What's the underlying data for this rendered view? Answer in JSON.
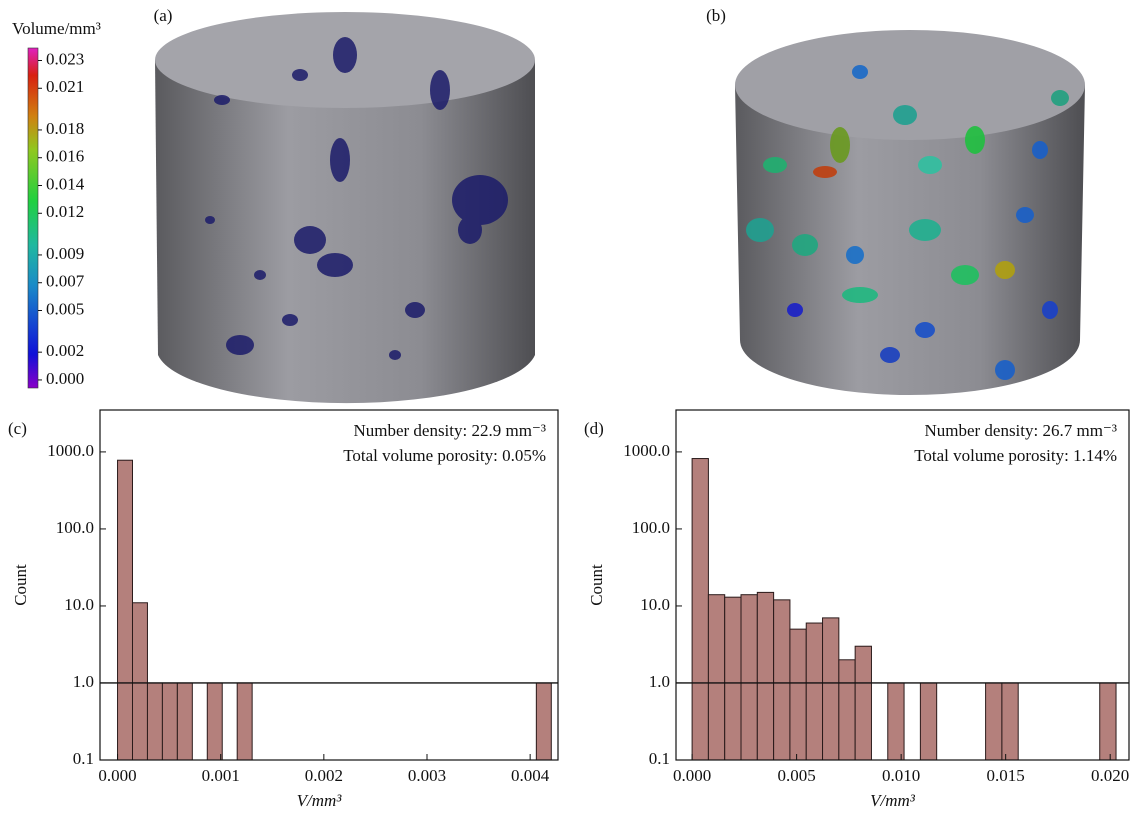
{
  "images": [
    {
      "label": "(a)"
    },
    {
      "label": "(b)"
    }
  ],
  "chart_data": [
    {
      "type": "colorbar",
      "title": "Volume/mm³",
      "lim": [
        -0.00058,
        0.0239
      ],
      "ticks": [
        {
          "value": 0,
          "label": "0.000"
        },
        0.002,
        0.005,
        0.007,
        0.009,
        0.012,
        0.014,
        0.016,
        0.018,
        0.021,
        0.023
      ]
    },
    {
      "type": "histogram",
      "panel_label": "(c)",
      "annotations": [
        "Number density: 22.9 mm⁻³",
        "Total volume porosity: 0.05%"
      ],
      "xlabel": "V/mm³",
      "ylabel": "Count",
      "color": "#b4807c",
      "log_y": true,
      "reference_line": 1,
      "bins": [
        0,
        0.000145,
        0.00029,
        0.000435,
        0.00058,
        0.000725,
        0.00087,
        0.001015,
        0.00116,
        0.001305,
        0.00145,
        0.001595,
        0.00174,
        0.001885,
        0.00203,
        0.002175,
        0.00232,
        0.002465,
        0.00261,
        0.002755,
        0.0029,
        0.003045,
        0.00319,
        0.003335,
        0.00348,
        0.003625,
        0.00377,
        0.003915,
        0.00406,
        0.004205
      ],
      "values": [
        780,
        11,
        1,
        1,
        1,
        0,
        1,
        0,
        1,
        0,
        0,
        0,
        0,
        0,
        0,
        0,
        0,
        0,
        0,
        0,
        0,
        0,
        0,
        0,
        0,
        0,
        0,
        0,
        1
      ],
      "xlim": [
        -0.00017,
        0.00427
      ],
      "xticks": [
        {
          "value": 0,
          "label": "0.000"
        },
        0.001,
        0.002,
        0.003,
        0.004
      ],
      "ylim": [
        0.1,
        3500
      ],
      "yticks": [
        0.1,
        {
          "value": 1,
          "label": "1.0"
        },
        {
          "value": 10,
          "label": "10.0"
        },
        {
          "value": 100,
          "label": "100.0"
        },
        {
          "value": 1000,
          "label": "1000.0"
        }
      ]
    },
    {
      "type": "histogram",
      "panel_label": "(d)",
      "annotations": [
        "Number density: 26.7 mm⁻³",
        "Total volume porosity: 1.14%"
      ],
      "xlabel": "V/mm³",
      "ylabel": "Count",
      "color": "#b4807c",
      "log_y": true,
      "reference_line": 1,
      "bins": [
        0,
        0.00078,
        0.00156,
        0.00234,
        0.00312,
        0.0039,
        0.00468,
        0.00546,
        0.00624,
        0.00702,
        0.0078,
        0.00858,
        0.00936,
        0.01014,
        0.01092,
        0.0117,
        0.01248,
        0.01326,
        0.01404,
        0.01482,
        0.0156,
        0.01638,
        0.01716,
        0.01794,
        0.01872,
        0.0195,
        0.02028
      ],
      "values": [
        820,
        14,
        13,
        14,
        15,
        12,
        5,
        6,
        7,
        2,
        3,
        0,
        1,
        0,
        1,
        0,
        0,
        0,
        1,
        1,
        0,
        0,
        0,
        0,
        0,
        1
      ],
      "xlim": [
        -0.00077,
        0.0209
      ],
      "xticks": [
        {
          "value": 0,
          "label": "0.000"
        },
        0.005,
        {
          "value": 0.01,
          "label": "0.010"
        },
        0.015,
        {
          "value": 0.02,
          "label": "0.020"
        }
      ],
      "ylim": [
        0.1,
        3500
      ],
      "yticks": [
        0.1,
        {
          "value": 1,
          "label": "1.0"
        },
        {
          "value": 10,
          "label": "10.0"
        },
        {
          "value": 100,
          "label": "100.0"
        },
        {
          "value": 1000,
          "label": "1000.0"
        }
      ]
    }
  ]
}
